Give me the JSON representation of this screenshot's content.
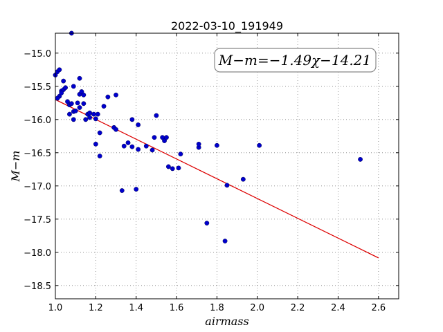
{
  "chart_data": {
    "type": "scatter",
    "title": "2022-03-10_191949",
    "xlabel": "airmass",
    "ylabel": "M−m",
    "xlim": [
      1.0,
      2.7
    ],
    "ylim": [
      -18.7,
      -14.7
    ],
    "y_inverted": true,
    "x_ticks": [
      1.0,
      1.2,
      1.4,
      1.6,
      1.8,
      2.0,
      2.2,
      2.4,
      2.6
    ],
    "x_tick_labels": [
      "1.0",
      "1.2",
      "1.4",
      "1.6",
      "1.8",
      "2.0",
      "2.2",
      "2.4",
      "2.6"
    ],
    "y_ticks": [
      -15.0,
      -15.5,
      -16.0,
      -16.5,
      -17.0,
      -17.5,
      -18.0,
      -18.5
    ],
    "y_tick_labels": [
      "−15.0",
      "−15.5",
      "−16.0",
      "−16.5",
      "−17.0",
      "−17.5",
      "−18.0",
      "−18.5"
    ],
    "grid": true,
    "annotation": "M−m=−1.49χ−14.21",
    "annotation_position": "top-right",
    "fit_line": {
      "slope": -1.49,
      "intercept": -14.21,
      "x_range": [
        1.0,
        2.6
      ],
      "color": "#dd0000"
    },
    "point_color": "#0000cc",
    "points": [
      [
        1.01,
        -15.28
      ],
      [
        1.02,
        -15.25
      ],
      [
        1.0,
        -15.33
      ],
      [
        1.02,
        -15.65
      ],
      [
        1.01,
        -15.68
      ],
      [
        1.03,
        -15.57
      ],
      [
        1.04,
        -15.55
      ],
      [
        1.03,
        -15.6
      ],
      [
        1.04,
        -15.42
      ],
      [
        1.05,
        -15.52
      ],
      [
        1.06,
        -15.73
      ],
      [
        1.07,
        -15.78
      ],
      [
        1.08,
        -15.76
      ],
      [
        1.07,
        -15.92
      ],
      [
        1.08,
        -14.7
      ],
      [
        1.09,
        -15.5
      ],
      [
        1.09,
        -15.88
      ],
      [
        1.1,
        -15.87
      ],
      [
        1.09,
        -16.0
      ],
      [
        1.11,
        -15.75
      ],
      [
        1.12,
        -15.82
      ],
      [
        1.12,
        -15.62
      ],
      [
        1.12,
        -15.38
      ],
      [
        1.13,
        -15.58
      ],
      [
        1.14,
        -15.63
      ],
      [
        1.14,
        -15.76
      ],
      [
        1.15,
        -16.0
      ],
      [
        1.16,
        -15.92
      ],
      [
        1.17,
        -15.97
      ],
      [
        1.17,
        -15.9
      ],
      [
        1.19,
        -15.92
      ],
      [
        1.2,
        -15.99
      ],
      [
        1.2,
        -16.37
      ],
      [
        1.21,
        -15.92
      ],
      [
        1.22,
        -16.2
      ],
      [
        1.22,
        -16.55
      ],
      [
        1.24,
        -15.8
      ],
      [
        1.26,
        -15.66
      ],
      [
        1.29,
        -16.12
      ],
      [
        1.3,
        -16.15
      ],
      [
        1.3,
        -15.63
      ],
      [
        1.33,
        -17.07
      ],
      [
        1.34,
        -16.4
      ],
      [
        1.36,
        -16.35
      ],
      [
        1.38,
        -16.41
      ],
      [
        1.38,
        -16.0
      ],
      [
        1.4,
        -17.05
      ],
      [
        1.41,
        -16.45
      ],
      [
        1.41,
        -16.08
      ],
      [
        1.45,
        -16.4
      ],
      [
        1.48,
        -16.46
      ],
      [
        1.49,
        -16.27
      ],
      [
        1.5,
        -15.94
      ],
      [
        1.53,
        -16.27
      ],
      [
        1.54,
        -16.32
      ],
      [
        1.55,
        -16.27
      ],
      [
        1.56,
        -16.71
      ],
      [
        1.58,
        -16.74
      ],
      [
        1.61,
        -16.73
      ],
      [
        1.62,
        -16.52
      ],
      [
        1.71,
        -16.42
      ],
      [
        1.71,
        -16.37
      ],
      [
        1.75,
        -17.56
      ],
      [
        1.8,
        -16.39
      ],
      [
        1.84,
        -17.83
      ],
      [
        1.85,
        -16.99
      ],
      [
        1.93,
        -16.9
      ],
      [
        2.01,
        -16.39
      ],
      [
        2.51,
        -16.6
      ]
    ]
  }
}
